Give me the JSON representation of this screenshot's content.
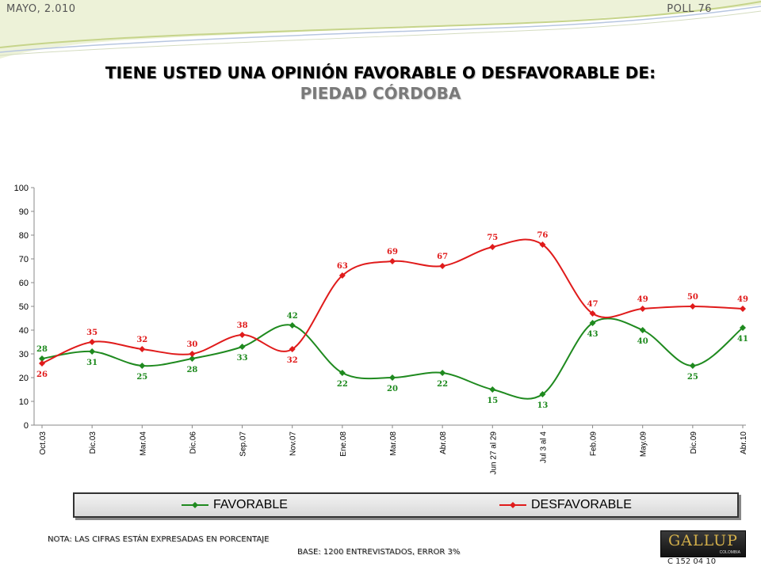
{
  "header": {
    "date": "MAYO, 2.010",
    "poll": "POLL 76"
  },
  "title": "TIENE USTED UNA OPINIÓN FAVORABLE O DESFAVORABLE DE:",
  "subtitle": "PIEDAD CÓRDOBA",
  "colors": {
    "favorable": "#1f8a1f",
    "desfavorable": "#e01b1b",
    "swoosh": "#c6d48a"
  },
  "chart_data": {
    "type": "line",
    "categories": [
      "Oct.03",
      "Dic.03",
      "Mar.04",
      "Dic.06",
      "Sep.07",
      "Nov.07",
      "Ene.08",
      "Mar.08",
      "Abr.08",
      "Jun 27 al 29",
      "Jul 3 al 4",
      "Feb.09",
      "May.09",
      "Dic.09",
      "Abr.10"
    ],
    "series": [
      {
        "name": "FAVORABLE",
        "values": [
          28,
          31,
          25,
          28,
          33,
          42,
          22,
          20,
          22,
          15,
          13,
          43,
          40,
          25,
          41
        ]
      },
      {
        "name": "DESFAVORABLE",
        "values": [
          26,
          35,
          32,
          30,
          38,
          32,
          63,
          69,
          67,
          75,
          76,
          47,
          49,
          50,
          49
        ]
      }
    ],
    "ylim": [
      0,
      100
    ],
    "yticks": [
      0,
      10,
      20,
      30,
      40,
      50,
      60,
      70,
      80,
      90,
      100
    ],
    "xlabel": "",
    "ylabel": "",
    "grid": false,
    "legend": "bottom"
  },
  "legend": {
    "favorable": "FAVORABLE",
    "desfavorable": "DESFAVORABLE"
  },
  "footer": {
    "note": "NOTA: LAS CIFRAS ESTÁN EXPRESADAS EN PORCENTAJE",
    "base": "BASE: 1200 ENTREVISTADOS, ERROR 3%",
    "code": "C 152 04 10"
  },
  "logo": {
    "name": "GALLUP",
    "sub": "COLOMBIA"
  }
}
